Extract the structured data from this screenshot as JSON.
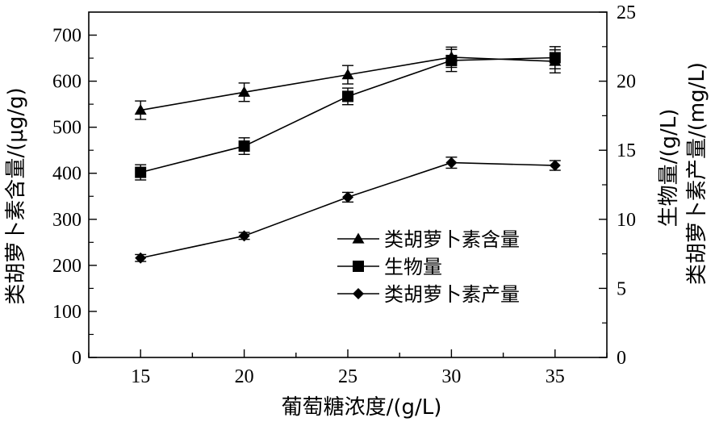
{
  "chart_data": {
    "type": "line",
    "xlabel": "葡萄糖浓度/(g/L)",
    "ylabel_left": "类胡萝卜素含量/(μg/g)",
    "ylabel_right_line1": "生物量/(g/L)",
    "ylabel_right_line2": "类胡萝卜素产量/(mg/L)",
    "x": [
      15,
      20,
      25,
      30,
      35
    ],
    "x_ticks": [
      "15",
      "20",
      "25",
      "30",
      "35"
    ],
    "xlim": [
      12.5,
      37.5
    ],
    "ylim_left": [
      0,
      750
    ],
    "ylim_right": [
      0,
      25
    ],
    "y_ticks_left": [
      "0",
      "100",
      "200",
      "300",
      "400",
      "500",
      "600",
      "700"
    ],
    "y_ticks_right": [
      "0",
      "5",
      "10",
      "15",
      "20",
      "25"
    ],
    "grid": false,
    "legend_position": "center-right",
    "series": [
      {
        "name": "类胡萝卜素含量",
        "axis": "left",
        "marker": "triangle",
        "values": [
          537,
          576,
          614,
          652,
          643
        ],
        "errors": [
          20,
          20,
          20,
          22,
          25
        ]
      },
      {
        "name": "生物量",
        "axis": "right",
        "marker": "square",
        "values": [
          13.4,
          15.3,
          18.9,
          21.5,
          21.7
        ],
        "errors": [
          0.55,
          0.6,
          0.6,
          0.8,
          0.8
        ]
      },
      {
        "name": "类胡萝卜素产量",
        "axis": "right",
        "marker": "diamond",
        "values": [
          7.2,
          8.8,
          11.6,
          14.1,
          13.9
        ],
        "errors": [
          0.25,
          0.25,
          0.35,
          0.4,
          0.35
        ]
      }
    ]
  }
}
